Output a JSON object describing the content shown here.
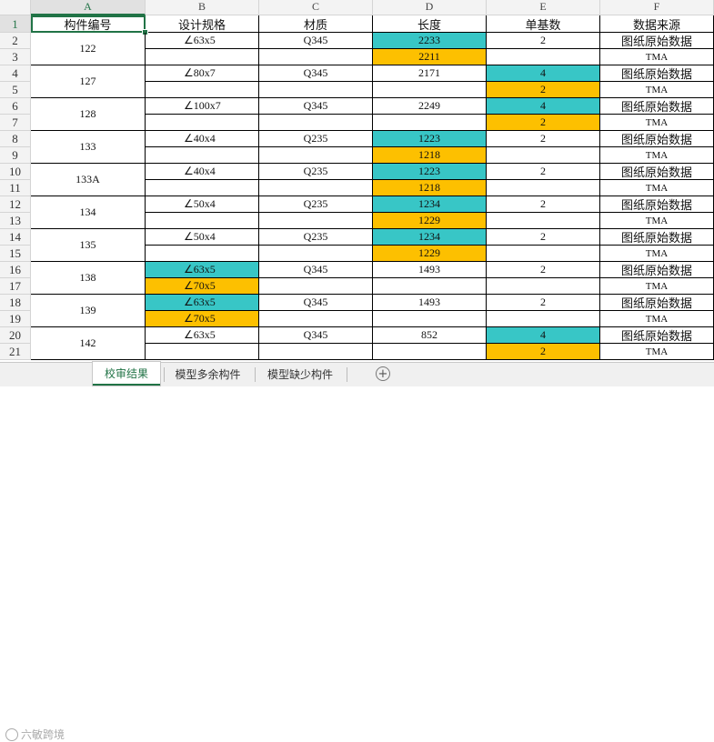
{
  "columns": [
    "A",
    "B",
    "C",
    "D",
    "E",
    "F"
  ],
  "header_row": [
    "构件编号",
    "设计规格",
    "材质",
    "长度",
    "单基数",
    "数据来源"
  ],
  "groups": [
    {
      "id": "122",
      "rows": [
        {
          "spec": "∠63x5",
          "mat": "Q345",
          "len": "2233",
          "cnt": "2",
          "src": "图纸原始数据"
        },
        {
          "len": "2211",
          "src": "TMA"
        }
      ]
    },
    {
      "id": "127",
      "rows": [
        {
          "spec": "∠80x7",
          "mat": "Q345",
          "len": "2171",
          "cnt": "4",
          "src": "图纸原始数据"
        },
        {
          "cnt": "2",
          "src": "TMA"
        }
      ]
    },
    {
      "id": "128",
      "rows": [
        {
          "spec": "∠100x7",
          "mat": "Q345",
          "len": "2249",
          "cnt": "4",
          "src": "图纸原始数据"
        },
        {
          "cnt": "2",
          "src": "TMA"
        }
      ]
    },
    {
      "id": "133",
      "rows": [
        {
          "spec": "∠40x4",
          "mat": "Q235",
          "len": "1223",
          "cnt": "2",
          "src": "图纸原始数据"
        },
        {
          "len": "1218",
          "src": "TMA"
        }
      ]
    },
    {
      "id": "133A",
      "rows": [
        {
          "spec": "∠40x4",
          "mat": "Q235",
          "len": "1223",
          "cnt": "2",
          "src": "图纸原始数据"
        },
        {
          "len": "1218",
          "src": "TMA"
        }
      ]
    },
    {
      "id": "134",
      "rows": [
        {
          "spec": "∠50x4",
          "mat": "Q235",
          "len": "1234",
          "cnt": "2",
          "src": "图纸原始数据"
        },
        {
          "len": "1229",
          "src": "TMA"
        }
      ]
    },
    {
      "id": "135",
      "rows": [
        {
          "spec": "∠50x4",
          "mat": "Q235",
          "len": "1234",
          "cnt": "2",
          "src": "图纸原始数据"
        },
        {
          "len": "1229",
          "src": "TMA"
        }
      ]
    },
    {
      "id": "138",
      "rows": [
        {
          "spec": "∠63x5",
          "mat": "Q345",
          "len": "1493",
          "cnt": "2",
          "src": "图纸原始数据"
        },
        {
          "spec": "∠70x5",
          "src": "TMA"
        }
      ]
    },
    {
      "id": "139",
      "rows": [
        {
          "spec": "∠63x5",
          "mat": "Q345",
          "len": "1493",
          "cnt": "2",
          "src": "图纸原始数据"
        },
        {
          "spec": "∠70x5",
          "src": "TMA"
        }
      ]
    },
    {
      "id": "142",
      "rows": [
        {
          "spec": "∠63x5",
          "mat": "Q345",
          "len": "852",
          "cnt": "4",
          "src": "图纸原始数据"
        },
        {
          "cnt": "2",
          "src": "TMA"
        }
      ]
    }
  ],
  "highlight_colors": {
    "drawing_value": "#38c6c6",
    "model_value": "#fdc000"
  },
  "highlighted_field_by_group": [
    "len",
    "cnt",
    "cnt",
    "len",
    "len",
    "len",
    "len",
    "spec",
    "spec",
    "cnt"
  ],
  "tabs": [
    "校审结果",
    "模型多余构件",
    "模型缺少构件"
  ],
  "active_tab": 0,
  "add_sheet_icon": "plus-circle-icon",
  "watermark_text": "六敏跨境"
}
